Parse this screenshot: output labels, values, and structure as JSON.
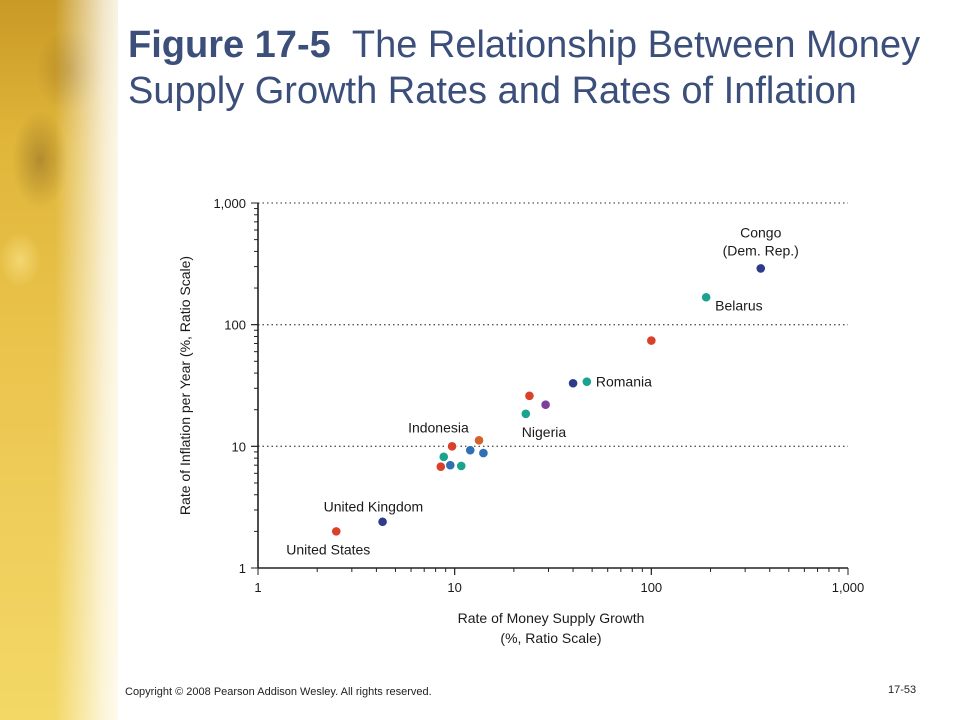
{
  "slide": {
    "title_num": "Figure 17-5",
    "title_rest": "The Relationship Between Money Supply Growth Rates and Rates of Inflation",
    "copyright": "Copyright © 2008 Pearson Addison Wesley. All rights reserved.",
    "page_number": "17-53"
  },
  "colors": {
    "red": "#d9412b",
    "navy": "#2e3a8c",
    "teal": "#1aa38f",
    "blue": "#2f6fb5",
    "purple": "#7b3f9e",
    "orange": "#d4622a"
  },
  "chart_data": {
    "type": "scatter",
    "x_scale": "log",
    "y_scale": "log",
    "xlim": [
      1,
      1000
    ],
    "ylim": [
      1,
      1000
    ],
    "x_ticks": [
      "1",
      "10",
      "100",
      "1,000"
    ],
    "y_ticks": [
      "1",
      "10",
      "100",
      "1,000"
    ],
    "xlabel_line1": "Rate of Money Supply Growth",
    "xlabel_line2": "(%, Ratio Scale)",
    "ylabel": "Rate of Inflation per Year (%, Ratio Scale)",
    "horizontal_gridlines": "dotted",
    "points": [
      {
        "x": 2.5,
        "y": 2.0,
        "color": "red",
        "label": "United States"
      },
      {
        "x": 4.3,
        "y": 2.4,
        "color": "navy",
        "label": "United Kingdom"
      },
      {
        "x": 8.5,
        "y": 6.8,
        "color": "red",
        "label": ""
      },
      {
        "x": 8.8,
        "y": 8.2,
        "color": "teal",
        "label": ""
      },
      {
        "x": 9.5,
        "y": 7.0,
        "color": "blue",
        "label": ""
      },
      {
        "x": 9.7,
        "y": 10.0,
        "color": "red",
        "label": "Indonesia"
      },
      {
        "x": 10.8,
        "y": 6.9,
        "color": "teal",
        "label": ""
      },
      {
        "x": 12.0,
        "y": 9.3,
        "color": "blue",
        "label": ""
      },
      {
        "x": 13.3,
        "y": 11.2,
        "color": "orange",
        "label": ""
      },
      {
        "x": 14.0,
        "y": 8.8,
        "color": "blue",
        "label": ""
      },
      {
        "x": 23.0,
        "y": 18.5,
        "color": "teal",
        "label": "Nigeria"
      },
      {
        "x": 24.0,
        "y": 26.0,
        "color": "red",
        "label": ""
      },
      {
        "x": 29.0,
        "y": 22.0,
        "color": "purple",
        "label": ""
      },
      {
        "x": 40.0,
        "y": 33.0,
        "color": "navy",
        "label": ""
      },
      {
        "x": 47.0,
        "y": 34.0,
        "color": "teal",
        "label": "Romania"
      },
      {
        "x": 100.0,
        "y": 74.0,
        "color": "red",
        "label": ""
      },
      {
        "x": 190.0,
        "y": 168.0,
        "color": "teal",
        "label": "Belarus"
      },
      {
        "x": 360.0,
        "y": 290.0,
        "color": "navy",
        "label_line1": "Congo",
        "label_line2": "(Dem. Rep.)"
      }
    ]
  }
}
